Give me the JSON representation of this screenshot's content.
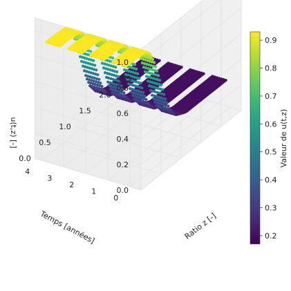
{
  "chart_data": {
    "type": "scatter",
    "projection": "3d",
    "colormap": "viridis",
    "x_axis": {
      "label": "Temps [années]",
      "ticks": [
        "0",
        "1",
        "2",
        "3",
        "4"
      ],
      "range": [
        0,
        4
      ]
    },
    "y_axis": {
      "label": "Ratio z [-]",
      "ticks": [
        "0.0",
        "0.5",
        "1.0",
        "1.5",
        "2.0",
        "2.5"
      ],
      "range": [
        0,
        2.5
      ]
    },
    "z_axis": {
      "label": "u(t,z) [-]",
      "ticks": [
        "0.0",
        "0.2",
        "0.4",
        "0.6",
        "0.8",
        "1.0"
      ],
      "range": [
        0,
        1.0
      ]
    },
    "colorbar": {
      "label": "Valeur de u(t,z)",
      "ticks": [
        "0.2",
        "0.3",
        "0.4",
        "0.5",
        "0.6",
        "0.7",
        "0.8",
        "0.9"
      ],
      "range": [
        0.17,
        0.93
      ]
    },
    "time_slices": [
      0.5,
      1.5,
      2.5,
      3.5
    ],
    "profile": {
      "z": [
        0.0,
        0.25,
        0.5,
        0.6,
        0.7,
        0.8,
        0.9,
        1.0,
        1.1,
        1.25,
        1.5,
        2.0,
        2.5
      ],
      "u": [
        0.93,
        0.93,
        0.92,
        0.88,
        0.8,
        0.68,
        0.55,
        0.42,
        0.32,
        0.24,
        0.2,
        0.2,
        0.2
      ]
    },
    "grid": true
  }
}
